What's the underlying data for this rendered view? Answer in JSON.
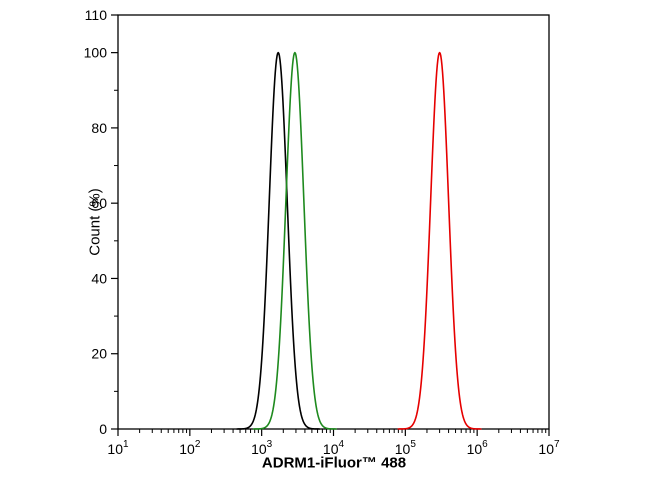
{
  "page": {
    "background": "#ffffff"
  },
  "chart_data": {
    "type": "line",
    "subtype": "flow-cytometry-histogram",
    "title": "",
    "xlabel": "ADRM1-iFluor™ 488",
    "ylabel": "Count  (%)",
    "x_scale": "log10",
    "xlim": [
      10,
      10000000
    ],
    "x_tick_exponents": [
      1,
      2,
      3,
      4,
      5,
      6,
      7
    ],
    "x_tick_base": "10",
    "ylim": [
      0,
      110
    ],
    "y_ticks": [
      0,
      20,
      40,
      60,
      80,
      100,
      110
    ],
    "y_minor_ticks": [
      10,
      30,
      50,
      70,
      90
    ],
    "grid": false,
    "legend_position": "none",
    "frame_color": "#000000",
    "series": [
      {
        "name": "black-control-peak",
        "color": "#000000",
        "curve": "gaussian-log10",
        "peak_x": 1700,
        "peak_y": 100,
        "sigma_decades": 0.125
      },
      {
        "name": "green-peak",
        "color": "#1e8a1e",
        "curve": "gaussian-log10",
        "peak_x": 2900,
        "peak_y": 100,
        "sigma_decades": 0.125
      },
      {
        "name": "red-peak",
        "color": "#e60000",
        "curve": "gaussian-log10",
        "peak_x": 300000,
        "peak_y": 100,
        "sigma_decades": 0.125
      }
    ]
  }
}
